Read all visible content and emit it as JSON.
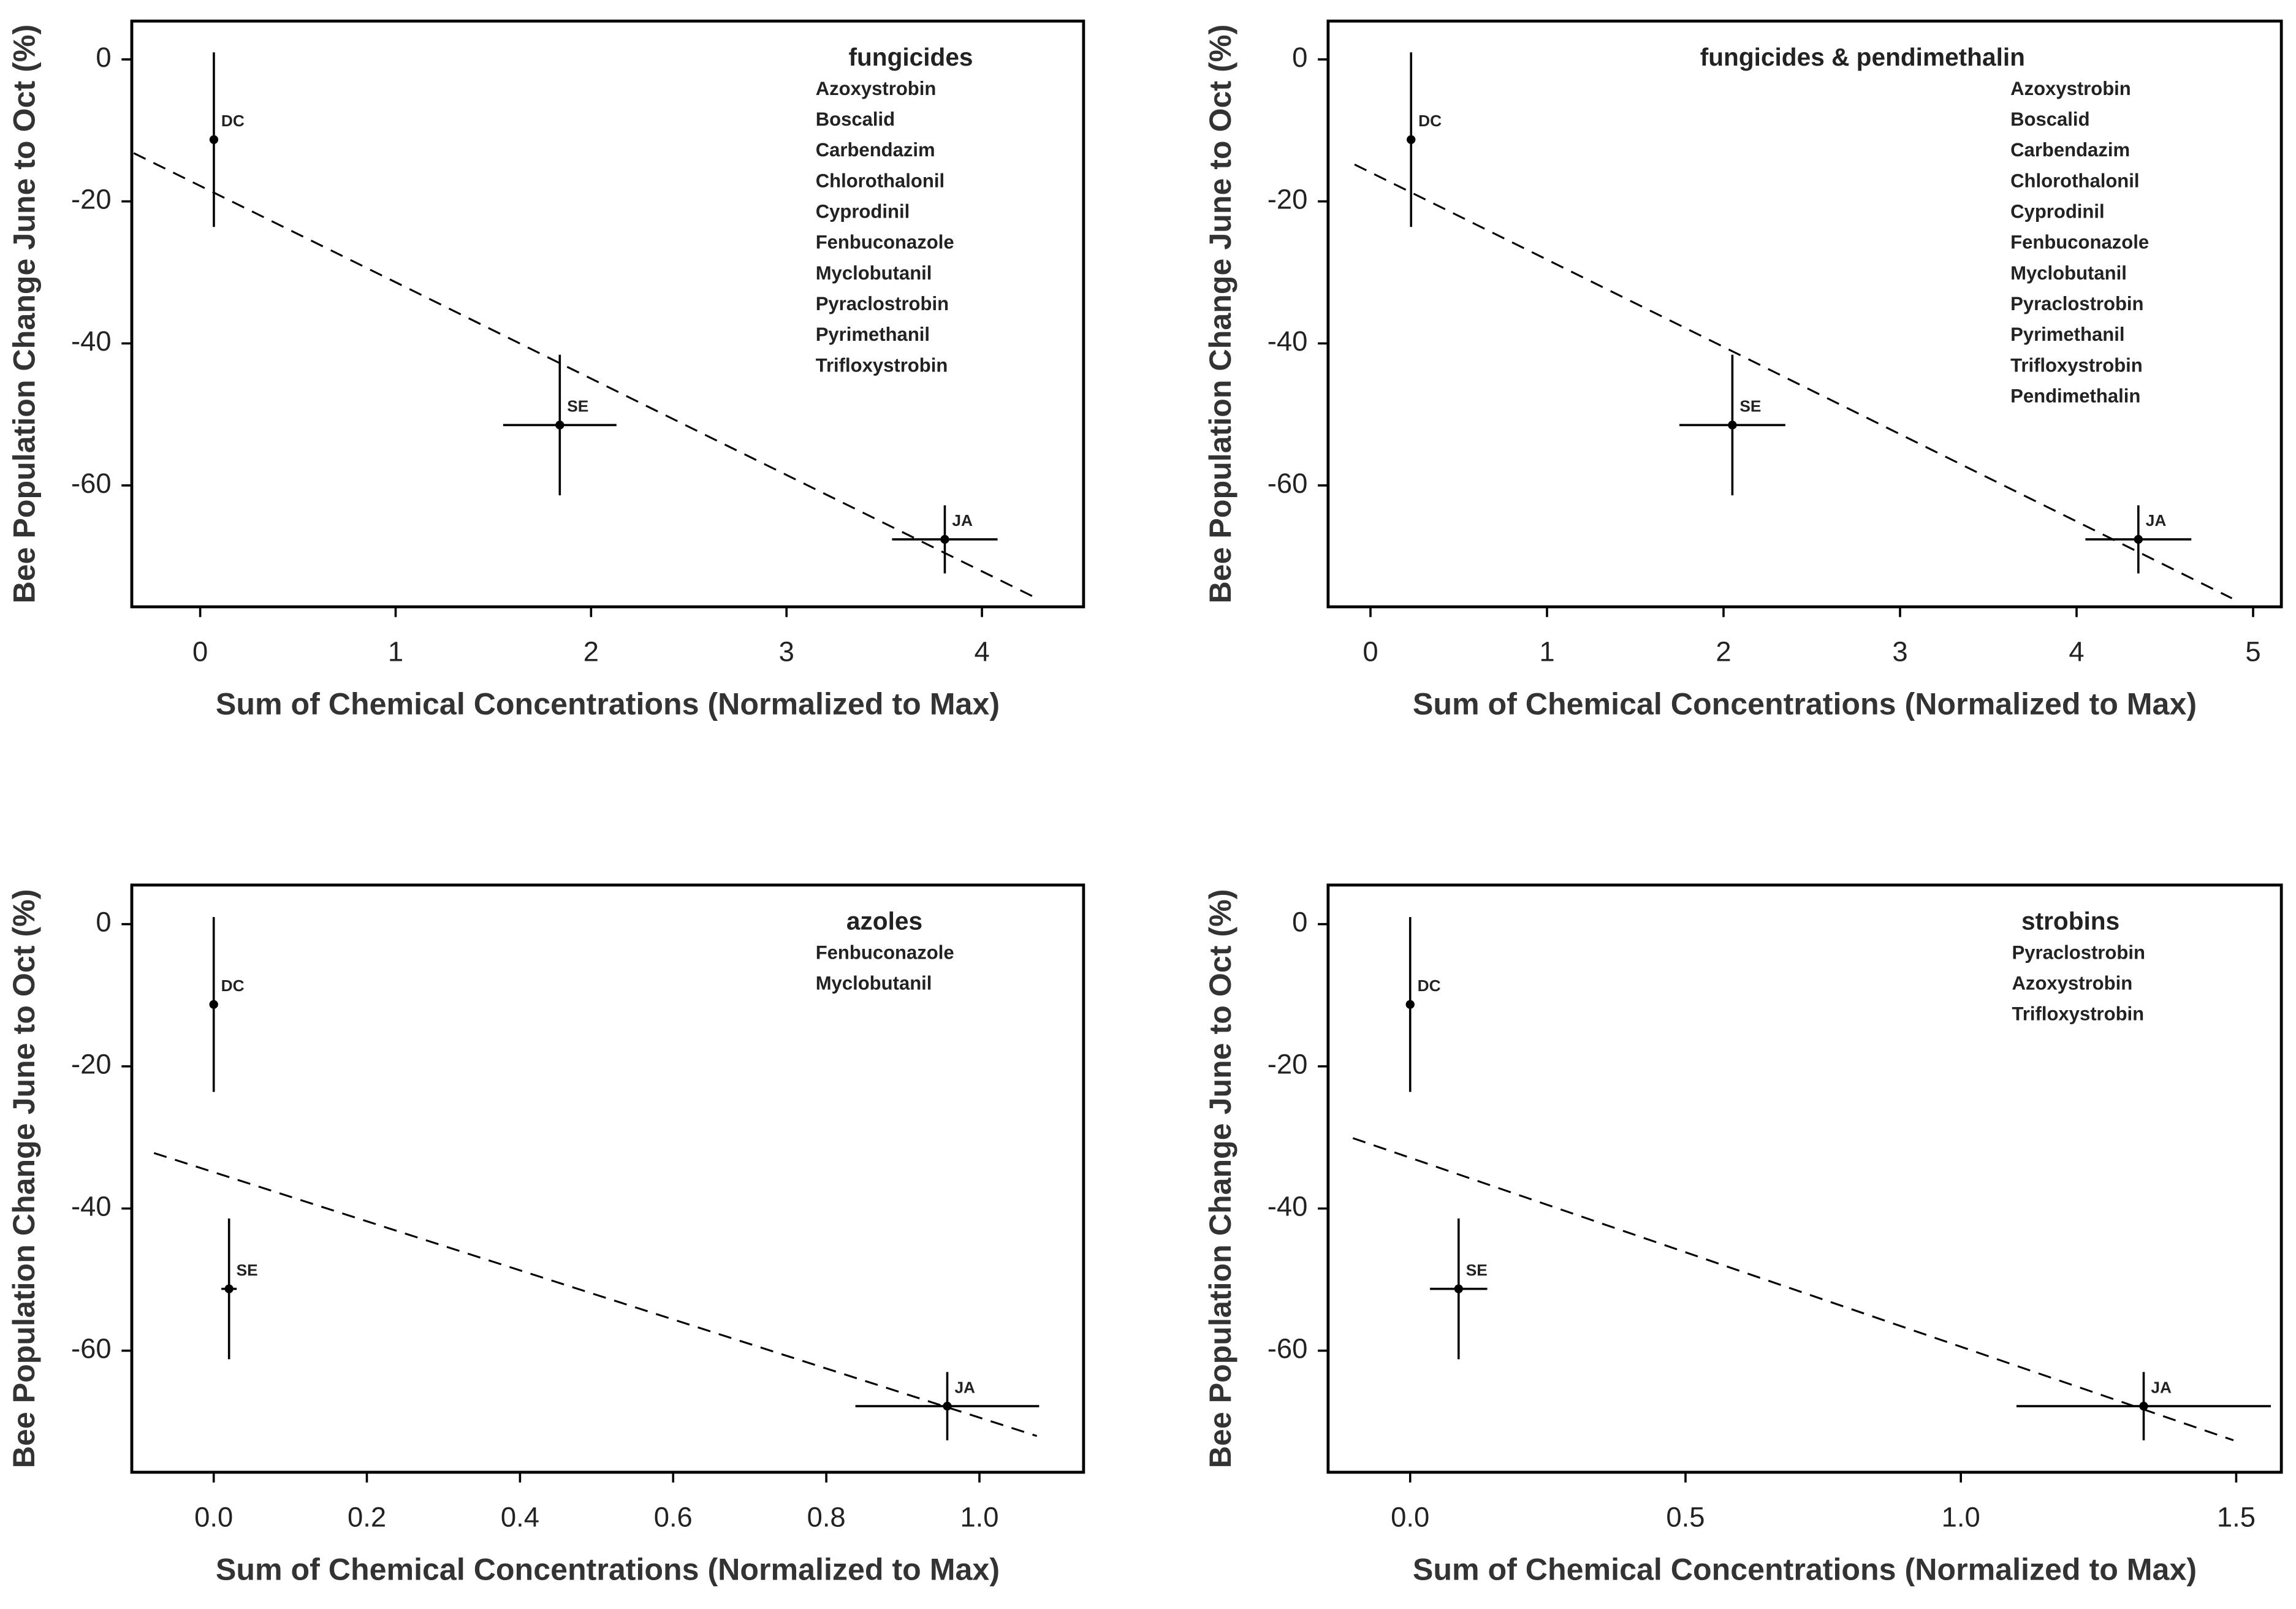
{
  "chart_data": [
    {
      "type": "scatter",
      "title": "fungicides",
      "compounds": [
        "Azoxystrobin",
        "Boscalid",
        "Carbendazim",
        "Chlorothalonil",
        "Cyprodinil",
        "Fenbuconazole",
        "Myclobutanil",
        "Pyraclostrobin",
        "Pyrimethanil",
        "Trifloxystrobin"
      ],
      "xlabel": "Sum of Chemical Concentrations (Normalized to Max)",
      "ylabel": "Bee Population Change June to Oct (%)",
      "labels": [
        "DC",
        "SE",
        "JA"
      ],
      "x": [
        0.07,
        1.84,
        3.81
      ],
      "values": [
        -11.3,
        -51.5,
        -67.6
      ],
      "xerr": [
        0,
        0.29,
        0.27
      ],
      "yerr": [
        12.3,
        9.9,
        4.8
      ],
      "color": "#000000",
      "fit_line": {
        "x": [
          -0.34,
          4.28
        ],
        "values": [
          -13.2,
          -75.9
        ]
      },
      "xlim": [
        -0.35,
        4.52
      ],
      "ylim": [
        -77.1,
        5.4
      ],
      "xticks": [
        0,
        1,
        2,
        3,
        4
      ],
      "yticks": [
        0,
        -20,
        -40,
        -60
      ]
    },
    {
      "type": "scatter",
      "title": "fungicides & pendimethalin",
      "compounds": [
        "Azoxystrobin",
        "Boscalid",
        "Carbendazim",
        "Chlorothalonil",
        "Cyprodinil",
        "Fenbuconazole",
        "Myclobutanil",
        "Pyraclostrobin",
        "Pyrimethanil",
        "Trifloxystrobin",
        "Pendimethalin"
      ],
      "xlabel": "Sum of Chemical Concentrations (Normalized to Max)",
      "ylabel": "Bee Population Change June to Oct (%)",
      "labels": [
        "DC",
        "SE",
        "JA"
      ],
      "x": [
        0.23,
        2.05,
        4.35
      ],
      "values": [
        -11.3,
        -51.5,
        -67.6
      ],
      "xerr": [
        0,
        0.3,
        0.3
      ],
      "yerr": [
        12.3,
        9.9,
        4.8
      ],
      "color": "#000000",
      "fit_line": {
        "x": [
          -0.09,
          4.88
        ],
        "values": [
          -14.8,
          -75.9
        ]
      },
      "xlim": [
        -0.24,
        5.16
      ],
      "ylim": [
        -77.1,
        5.4
      ],
      "xticks": [
        0,
        1,
        2,
        3,
        4,
        5
      ],
      "yticks": [
        0,
        -20,
        -40,
        -60
      ]
    },
    {
      "type": "scatter",
      "title": "azoles",
      "compounds": [
        "Fenbuconazole",
        "Myclobutanil"
      ],
      "xlabel": "Sum of Chemical Concentrations (Normalized to Max)",
      "ylabel": "Bee Population Change June to Oct (%)",
      "labels": [
        "DC",
        "SE",
        "JA"
      ],
      "x": [
        0.0,
        0.02,
        0.958
      ],
      "values": [
        -11.3,
        -51.3,
        -67.8
      ],
      "xerr": [
        0,
        0.01,
        0.12
      ],
      "yerr": [
        12.3,
        9.9,
        4.8
      ],
      "color": "#000000",
      "fit_line": {
        "x": [
          -0.078,
          1.075
        ],
        "values": [
          -32.2,
          -72.0
        ]
      },
      "xlim": [
        -0.107,
        1.136
      ],
      "ylim": [
        -77.1,
        5.5
      ],
      "xticks": [
        {
          "value": 0,
          "label": "0.0"
        },
        0.2,
        0.4,
        0.6,
        0.8,
        {
          "value": 1,
          "label": "1.0"
        }
      ],
      "yticks": [
        0,
        -20,
        -40,
        -60
      ]
    },
    {
      "type": "scatter",
      "title": "strobins",
      "compounds": [
        "Pyraclostrobin",
        "Azoxystrobin",
        "Trifloxystrobin"
      ],
      "xlabel": "Sum of Chemical Concentrations (Normalized to Max)",
      "ylabel": "Bee Population Change June to Oct (%)",
      "labels": [
        "DC",
        "SE",
        "JA"
      ],
      "x": [
        0.0,
        0.088,
        1.332
      ],
      "values": [
        -11.3,
        -51.3,
        -67.8
      ],
      "xerr": [
        0,
        0.052,
        0.231
      ],
      "yerr": [
        12.3,
        9.9,
        4.8
      ],
      "color": "#000000",
      "fit_line": {
        "x": [
          -0.104,
          1.495
        ],
        "values": [
          -30.1,
          -72.6
        ]
      },
      "xlim": [
        -0.149,
        1.582
      ],
      "ylim": [
        -77.1,
        5.5
      ],
      "xticks": [
        {
          "value": 0,
          "label": "0.0"
        },
        0.5,
        {
          "value": 1,
          "label": "1.0"
        },
        1.5
      ],
      "yticks": [
        0,
        -20,
        -40,
        -60
      ]
    }
  ]
}
